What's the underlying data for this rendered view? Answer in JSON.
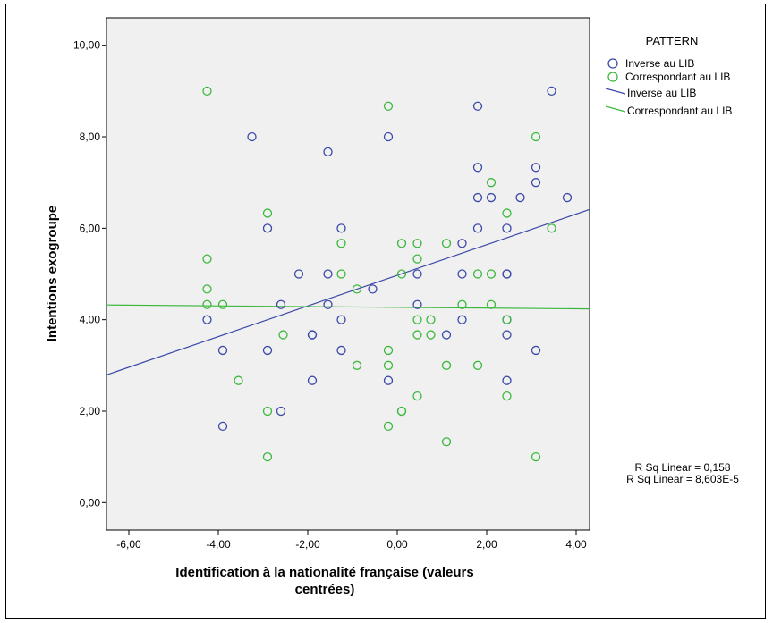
{
  "chart_data": {
    "type": "scatter",
    "xlabel": "Identification à la nationalité française (valeurs centrées)",
    "xlabel_lines": [
      "Identification à la nationalité française (valeurs",
      "centrées)"
    ],
    "ylabel": "Intentions exogroupe",
    "xlim": [
      -6.5,
      4.3
    ],
    "ylim": [
      -0.6,
      10.6
    ],
    "x_ticks": [
      -6,
      -4,
      -2,
      0,
      2,
      4
    ],
    "x_tick_labels": [
      "-6,00",
      "-4,00",
      "-2,00",
      "0,00",
      "2,00",
      "4,00"
    ],
    "y_ticks": [
      0,
      2,
      4,
      6,
      8,
      10
    ],
    "y_tick_labels": [
      "0,00",
      "2,00",
      "4,00",
      "6,00",
      "8,00",
      "10,00"
    ],
    "grid": false,
    "legend": {
      "title": "PATTERN",
      "placement": "right",
      "entries": [
        {
          "label": "Inverse au LIB",
          "kind": "marker",
          "color": "#3b4aa8"
        },
        {
          "label": "Correspondant au LIB",
          "kind": "marker",
          "color": "#3cb83c"
        },
        {
          "label": "Inverse au LIB",
          "kind": "line",
          "color": "#3b4aa8"
        },
        {
          "label": "Correspondant au LIB",
          "kind": "line",
          "color": "#3cb83c"
        }
      ]
    },
    "annotations": [
      "R Sq Linear = 0,158",
      "R Sq Linear = 8,603E-5"
    ],
    "series": [
      {
        "name": "Inverse au LIB",
        "color": "#3b4aa8",
        "points": [
          [
            -4.25,
            4.0
          ],
          [
            -3.9,
            3.33
          ],
          [
            -3.9,
            1.67
          ],
          [
            -3.25,
            8.0
          ],
          [
            -2.9,
            6.0
          ],
          [
            -2.9,
            3.33
          ],
          [
            -2.6,
            4.33
          ],
          [
            -2.6,
            2.0
          ],
          [
            -2.2,
            5.0
          ],
          [
            -1.9,
            3.67
          ],
          [
            -1.9,
            3.67
          ],
          [
            -1.9,
            2.67
          ],
          [
            -1.55,
            7.67
          ],
          [
            -1.55,
            5.0
          ],
          [
            -1.55,
            4.33
          ],
          [
            -1.25,
            6.0
          ],
          [
            -1.25,
            4.0
          ],
          [
            -1.25,
            3.33
          ],
          [
            -0.55,
            4.67
          ],
          [
            -0.2,
            8.0
          ],
          [
            -0.2,
            2.67
          ],
          [
            0.45,
            5.0
          ],
          [
            0.45,
            4.33
          ],
          [
            1.1,
            3.67
          ],
          [
            1.45,
            5.67
          ],
          [
            1.45,
            5.0
          ],
          [
            1.45,
            4.0
          ],
          [
            1.8,
            8.67
          ],
          [
            1.8,
            7.33
          ],
          [
            1.8,
            6.67
          ],
          [
            1.8,
            6.0
          ],
          [
            2.1,
            6.67
          ],
          [
            2.45,
            6.0
          ],
          [
            2.45,
            5.0
          ],
          [
            2.45,
            5.0
          ],
          [
            2.45,
            4.0
          ],
          [
            2.45,
            3.67
          ],
          [
            2.45,
            2.67
          ],
          [
            2.75,
            6.67
          ],
          [
            3.1,
            7.33
          ],
          [
            3.1,
            7.0
          ],
          [
            3.1,
            3.33
          ],
          [
            3.45,
            9.0
          ],
          [
            3.8,
            6.67
          ]
        ],
        "fit": {
          "intercept": 4.97,
          "slope": 0.335
        }
      },
      {
        "name": "Correspondant au LIB",
        "color": "#3cb83c",
        "points": [
          [
            -4.25,
            9.0
          ],
          [
            -4.25,
            5.33
          ],
          [
            -4.25,
            4.67
          ],
          [
            -4.25,
            4.33
          ],
          [
            -3.9,
            4.33
          ],
          [
            -3.55,
            2.67
          ],
          [
            -2.9,
            6.33
          ],
          [
            -2.9,
            2.0
          ],
          [
            -2.9,
            1.0
          ],
          [
            -2.55,
            3.67
          ],
          [
            -1.25,
            5.67
          ],
          [
            -1.25,
            5.0
          ],
          [
            -0.9,
            4.67
          ],
          [
            -0.9,
            3.0
          ],
          [
            -0.2,
            8.67
          ],
          [
            -0.2,
            3.33
          ],
          [
            -0.2,
            3.0
          ],
          [
            -0.2,
            1.67
          ],
          [
            0.1,
            5.67
          ],
          [
            0.1,
            5.0
          ],
          [
            0.1,
            2.0
          ],
          [
            0.1,
            2.0
          ],
          [
            0.45,
            5.67
          ],
          [
            0.45,
            5.33
          ],
          [
            0.45,
            4.0
          ],
          [
            0.45,
            3.67
          ],
          [
            0.45,
            2.33
          ],
          [
            0.75,
            4.0
          ],
          [
            0.75,
            3.67
          ],
          [
            1.1,
            5.67
          ],
          [
            1.1,
            3.0
          ],
          [
            1.1,
            1.33
          ],
          [
            1.45,
            4.33
          ],
          [
            1.8,
            5.0
          ],
          [
            1.8,
            3.0
          ],
          [
            2.1,
            7.0
          ],
          [
            2.1,
            5.0
          ],
          [
            2.1,
            4.33
          ],
          [
            2.45,
            6.33
          ],
          [
            2.45,
            4.0
          ],
          [
            2.45,
            2.33
          ],
          [
            3.1,
            8.0
          ],
          [
            3.1,
            1.0
          ],
          [
            3.45,
            6.0
          ]
        ],
        "fit": {
          "intercept": 4.27,
          "slope": -0.008
        }
      }
    ]
  }
}
